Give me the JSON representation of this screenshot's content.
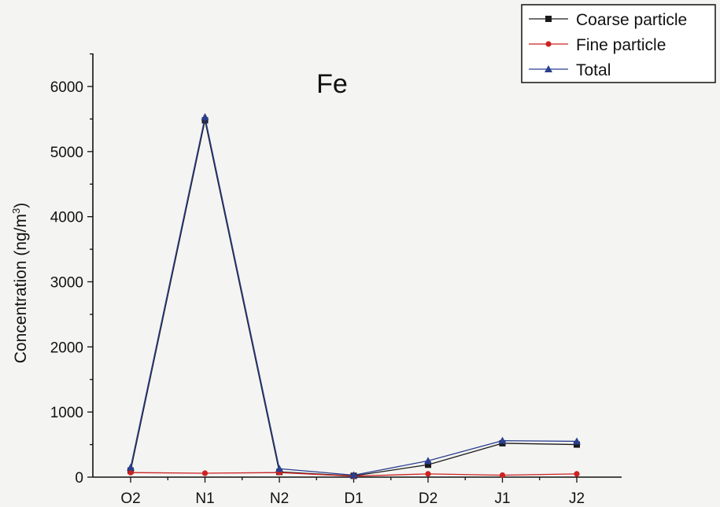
{
  "chart_data": {
    "type": "line",
    "title": "Fe",
    "xlabel": "",
    "ylabel": "Concentration (ng/m",
    "ylabel_superscript": "3",
    "ylabel_close": ")",
    "categories": [
      "O2",
      "N1",
      "N2",
      "D1",
      "D2",
      "J1",
      "J2"
    ],
    "ylim": [
      0,
      6500
    ],
    "yticks": [
      0,
      1000,
      2000,
      3000,
      4000,
      5000,
      6000
    ],
    "series": [
      {
        "name": "Coarse particle",
        "color": "#1a1a1a",
        "marker": "square",
        "values": [
          100,
          5480,
          80,
          20,
          190,
          520,
          500
        ]
      },
      {
        "name": "Fine particle",
        "color": "#cc2222",
        "marker": "circle",
        "values": [
          70,
          60,
          70,
          15,
          50,
          30,
          50
        ]
      },
      {
        "name": "Total",
        "color": "#2a3f8f",
        "marker": "triangle",
        "values": [
          150,
          5530,
          130,
          30,
          250,
          560,
          550
        ]
      }
    ],
    "legend_position": "top-right",
    "grid": false
  }
}
